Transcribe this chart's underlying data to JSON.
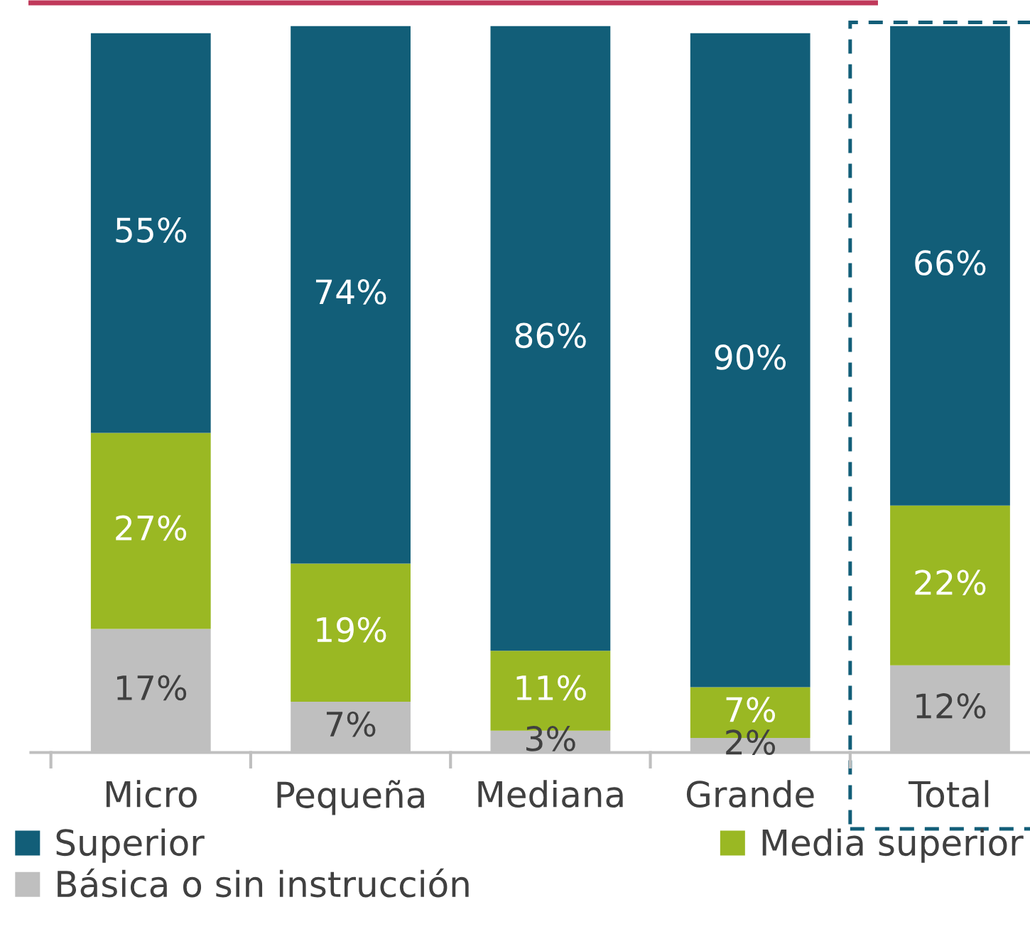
{
  "chart_data": {
    "type": "bar",
    "stacked": true,
    "categories": [
      "Micro",
      "Pequeña",
      "Mediana",
      "Grande",
      "Total"
    ],
    "series": [
      {
        "name": "Básica o sin instrucción",
        "color": "#bfbfbf",
        "values": [
          17,
          7,
          3,
          2,
          12
        ],
        "value_labels": [
          "17%",
          "7%",
          "3%",
          "2%",
          "12%"
        ]
      },
      {
        "name": "Media superior",
        "color": "#9ab823",
        "values": [
          27,
          19,
          11,
          7,
          22
        ],
        "value_labels": [
          "27%",
          "19%",
          "11%",
          "7%",
          "22%"
        ]
      },
      {
        "name": "Superior",
        "color": "#125e78",
        "values": [
          55,
          74,
          86,
          90,
          66
        ],
        "value_labels": [
          "55%",
          "74%",
          "86%",
          "90%",
          "66%"
        ]
      }
    ],
    "legend": "bottom",
    "tick_labels": "x",
    "grid": false
  }
}
